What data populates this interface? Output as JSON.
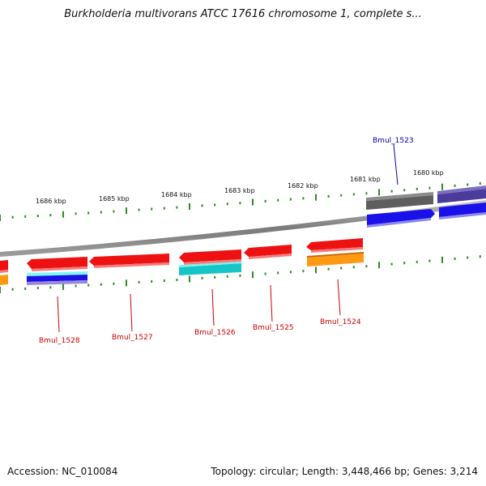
{
  "title": "Burkholderia multivorans ATCC 17616 chromosome 1, complete s...",
  "accession": "Accession: NC_010084",
  "summary": "Topology: circular; Length: 3,448,466 bp; Genes: 3,214",
  "ruler_labels": [
    "1686 kbp",
    "1685 kbp",
    "1684 kbp",
    "1683 kbp",
    "1682 kbp",
    "1681 kbp",
    "1680 kbp"
  ],
  "gene_labels": {
    "reverse": [
      "Bmul_1528",
      "Bmul_1527",
      "Bmul_1526",
      "Bmul_1525",
      "Bmul_1524"
    ],
    "forward": [
      "Bmul_1523"
    ]
  },
  "colors": {
    "backbone": "#8a8a8a",
    "tick": "#2e8b22",
    "gene_red": "#ee1111",
    "gene_blue": "#1a10e8",
    "gene_gray": "#666666",
    "gene_purple": "#4b3b9a",
    "gene_cyan": "#16c6c6",
    "gene_orange": "#ff9912",
    "label_red": "#cc0000",
    "label_blue": "#0000aa"
  }
}
